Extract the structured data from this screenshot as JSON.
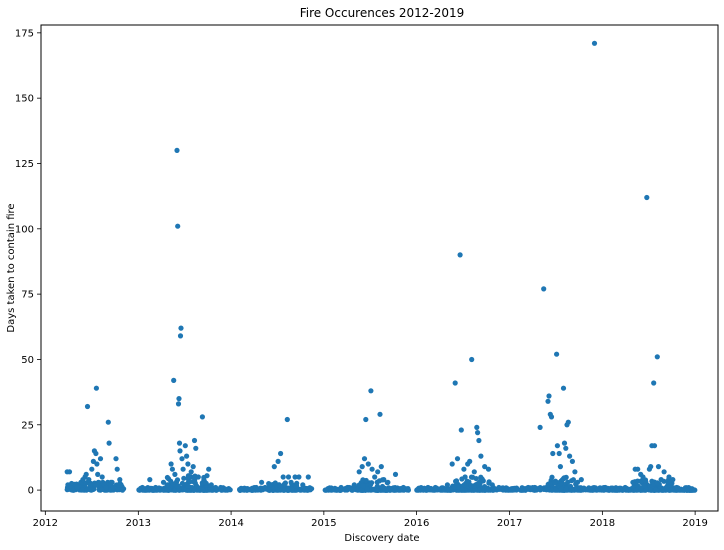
{
  "chart_data": {
    "type": "scatter",
    "title": "Fire Occurences 2012-2019",
    "xlabel": "Discovery date",
    "ylabel": "Days taken to contain fire",
    "x_axis_type": "date",
    "xlim": [
      "2011-12-15",
      "2019-04-01"
    ],
    "ylim": [
      -8,
      178
    ],
    "x_ticks": [
      "2012-01-01",
      "2013-01-01",
      "2014-01-01",
      "2015-01-01",
      "2016-01-01",
      "2017-01-01",
      "2018-01-01",
      "2019-01-01"
    ],
    "x_tick_labels": [
      "2012",
      "2013",
      "2014",
      "2015",
      "2016",
      "2017",
      "2018",
      "2019"
    ],
    "y_ticks": [
      0,
      25,
      50,
      75,
      100,
      125,
      150,
      175
    ],
    "y_tick_labels": [
      "0",
      "25",
      "50",
      "75",
      "100",
      "125",
      "150",
      "175"
    ],
    "grid": false,
    "marker_color": "#1f77b4",
    "series": [
      {
        "points": [
          [
            "2012-03-27",
            7
          ],
          [
            "2012-04-05",
            7
          ],
          [
            "2012-03-30",
            2
          ],
          [
            "2012-04-10",
            1
          ],
          [
            "2012-04-20",
            0
          ],
          [
            "2012-05-05",
            1
          ],
          [
            "2012-05-20",
            3
          ],
          [
            "2012-05-28",
            4
          ],
          [
            "2012-06-05",
            5
          ],
          [
            "2012-06-10",
            6
          ],
          [
            "2012-06-15",
            32
          ],
          [
            "2012-06-20",
            4
          ],
          [
            "2012-06-25",
            2
          ],
          [
            "2012-07-02",
            8
          ],
          [
            "2012-07-08",
            11
          ],
          [
            "2012-07-12",
            15
          ],
          [
            "2012-07-18",
            14
          ],
          [
            "2012-07-20",
            39
          ],
          [
            "2012-07-22",
            10
          ],
          [
            "2012-07-25",
            6
          ],
          [
            "2012-07-28",
            3
          ],
          [
            "2012-08-05",
            12
          ],
          [
            "2012-08-12",
            5
          ],
          [
            "2012-08-20",
            2
          ],
          [
            "2012-08-28",
            1
          ],
          [
            "2012-09-05",
            26
          ],
          [
            "2012-09-08",
            18
          ],
          [
            "2012-09-15",
            3
          ],
          [
            "2012-09-25",
            1
          ],
          [
            "2012-10-05",
            12
          ],
          [
            "2012-10-10",
            8
          ],
          [
            "2012-10-20",
            4
          ],
          [
            "2012-10-25",
            2
          ],
          [
            "2013-02-15",
            4
          ],
          [
            "2013-03-10",
            1
          ],
          [
            "2013-04-10",
            3
          ],
          [
            "2013-04-25",
            2
          ],
          [
            "2013-05-10",
            10
          ],
          [
            "2013-05-15",
            8
          ],
          [
            "2013-05-20",
            42
          ],
          [
            "2013-05-25",
            6
          ],
          [
            "2013-06-02",
            130
          ],
          [
            "2013-06-05",
            101
          ],
          [
            "2013-06-08",
            33
          ],
          [
            "2013-06-10",
            35
          ],
          [
            "2013-06-12",
            18
          ],
          [
            "2013-06-14",
            15
          ],
          [
            "2013-06-16",
            59
          ],
          [
            "2013-06-18",
            62
          ],
          [
            "2013-06-22",
            12
          ],
          [
            "2013-06-26",
            8
          ],
          [
            "2013-07-05",
            17
          ],
          [
            "2013-07-10",
            13
          ],
          [
            "2013-07-15",
            10
          ],
          [
            "2013-07-20",
            5
          ],
          [
            "2013-07-28",
            7
          ],
          [
            "2013-08-05",
            9
          ],
          [
            "2013-08-10",
            19
          ],
          [
            "2013-08-15",
            16
          ],
          [
            "2013-08-25",
            5
          ],
          [
            "2013-09-10",
            28
          ],
          [
            "2013-09-20",
            3
          ],
          [
            "2013-10-05",
            8
          ],
          [
            "2013-10-15",
            2
          ],
          [
            "2013-11-01",
            1
          ],
          [
            "2014-04-10",
            1
          ],
          [
            "2014-05-01",
            3
          ],
          [
            "2014-05-15",
            1
          ],
          [
            "2014-06-05",
            2
          ],
          [
            "2014-06-20",
            9
          ],
          [
            "2014-07-05",
            11
          ],
          [
            "2014-07-15",
            14
          ],
          [
            "2014-07-25",
            5
          ],
          [
            "2014-08-10",
            27
          ],
          [
            "2014-08-15",
            5
          ],
          [
            "2014-08-25",
            3
          ],
          [
            "2014-09-10",
            5
          ],
          [
            "2014-09-25",
            5
          ],
          [
            "2014-10-10",
            2
          ],
          [
            "2014-11-01",
            5
          ],
          [
            "2015-03-10",
            1
          ],
          [
            "2015-04-10",
            1
          ],
          [
            "2015-05-01",
            2
          ],
          [
            "2015-05-20",
            7
          ],
          [
            "2015-06-01",
            9
          ],
          [
            "2015-06-10",
            12
          ],
          [
            "2015-06-15",
            27
          ],
          [
            "2015-06-25",
            10
          ],
          [
            "2015-07-05",
            38
          ],
          [
            "2015-07-10",
            8
          ],
          [
            "2015-07-20",
            5
          ],
          [
            "2015-08-01",
            7
          ],
          [
            "2015-08-10",
            29
          ],
          [
            "2015-08-15",
            9
          ],
          [
            "2015-08-25",
            4
          ],
          [
            "2015-09-10",
            3
          ],
          [
            "2015-10-10",
            6
          ],
          [
            "2015-11-10",
            1
          ],
          [
            "2016-02-15",
            1
          ],
          [
            "2016-03-15",
            1
          ],
          [
            "2016-05-01",
            2
          ],
          [
            "2016-05-20",
            10
          ],
          [
            "2016-06-01",
            41
          ],
          [
            "2016-06-10",
            12
          ],
          [
            "2016-06-20",
            90
          ],
          [
            "2016-06-25",
            23
          ],
          [
            "2016-07-05",
            8
          ],
          [
            "2016-07-10",
            5
          ],
          [
            "2016-07-20",
            10
          ],
          [
            "2016-07-28",
            11
          ],
          [
            "2016-08-05",
            50
          ],
          [
            "2016-08-15",
            7
          ],
          [
            "2016-08-25",
            24
          ],
          [
            "2016-08-28",
            22
          ],
          [
            "2016-09-02",
            19
          ],
          [
            "2016-09-10",
            13
          ],
          [
            "2016-09-25",
            9
          ],
          [
            "2016-10-10",
            8
          ],
          [
            "2016-10-25",
            2
          ],
          [
            "2016-11-20",
            1
          ],
          [
            "2017-03-15",
            1
          ],
          [
            "2017-04-10",
            1
          ],
          [
            "2017-05-01",
            24
          ],
          [
            "2017-05-15",
            77
          ],
          [
            "2017-06-01",
            34
          ],
          [
            "2017-06-05",
            36
          ],
          [
            "2017-06-10",
            29
          ],
          [
            "2017-06-15",
            28
          ],
          [
            "2017-06-20",
            14
          ],
          [
            "2017-07-05",
            52
          ],
          [
            "2017-07-08",
            17
          ],
          [
            "2017-07-15",
            14
          ],
          [
            "2017-07-20",
            9
          ],
          [
            "2017-08-01",
            39
          ],
          [
            "2017-08-05",
            18
          ],
          [
            "2017-08-10",
            16
          ],
          [
            "2017-08-15",
            25
          ],
          [
            "2017-08-20",
            26
          ],
          [
            "2017-08-25",
            13
          ],
          [
            "2017-09-05",
            11
          ],
          [
            "2017-09-15",
            7
          ],
          [
            "2017-09-25",
            3
          ],
          [
            "2017-10-10",
            4
          ],
          [
            "2017-12-01",
            171
          ],
          [
            "2018-03-01",
            0
          ],
          [
            "2018-04-01",
            1
          ],
          [
            "2018-05-01",
            3
          ],
          [
            "2018-05-10",
            8
          ],
          [
            "2018-05-20",
            8
          ],
          [
            "2018-06-01",
            6
          ],
          [
            "2018-06-10",
            5
          ],
          [
            "2018-06-25",
            112
          ],
          [
            "2018-07-05",
            8
          ],
          [
            "2018-07-10",
            9
          ],
          [
            "2018-07-15",
            17
          ],
          [
            "2018-07-22",
            41
          ],
          [
            "2018-07-25",
            17
          ],
          [
            "2018-08-05",
            51
          ],
          [
            "2018-08-10",
            9
          ],
          [
            "2018-08-20",
            4
          ],
          [
            "2018-09-01",
            7
          ],
          [
            "2018-09-20",
            5
          ],
          [
            "2018-10-05",
            4
          ],
          [
            "2018-10-20",
            1
          ],
          [
            "2018-11-20",
            0
          ],
          [
            "2018-12-20",
            0
          ]
        ],
        "dense_bands": [
          {
            "start": "2012-03-25",
            "end": "2012-11-05",
            "ymax": 3
          },
          {
            "start": "2013-01-01",
            "end": "2013-12-31",
            "ymax": 1
          },
          {
            "start": "2013-04-20",
            "end": "2013-09-30",
            "ymax": 6
          },
          {
            "start": "2014-02-01",
            "end": "2014-11-15",
            "ymax": 1
          },
          {
            "start": "2014-05-25",
            "end": "2014-09-20",
            "ymax": 3
          },
          {
            "start": "2015-01-05",
            "end": "2015-11-30",
            "ymax": 1
          },
          {
            "start": "2015-05-15",
            "end": "2015-09-10",
            "ymax": 4
          },
          {
            "start": "2016-01-01",
            "end": "2016-12-31",
            "ymax": 1
          },
          {
            "start": "2016-05-20",
            "end": "2016-10-15",
            "ymax": 5
          },
          {
            "start": "2017-01-01",
            "end": "2018-12-31",
            "ymax": 1
          },
          {
            "start": "2017-05-25",
            "end": "2017-09-25",
            "ymax": 5
          },
          {
            "start": "2018-05-05",
            "end": "2018-10-10",
            "ymax": 4
          }
        ]
      }
    ]
  }
}
